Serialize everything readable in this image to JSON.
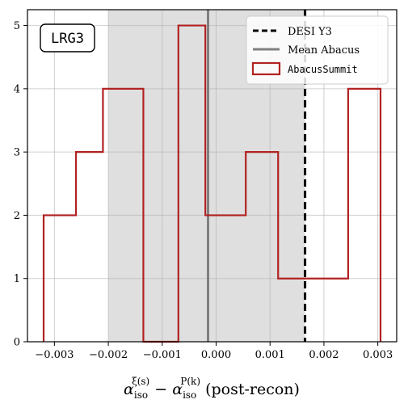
{
  "chart_data": {
    "type": "histogram",
    "badge": "LRG3",
    "xlabel": {
      "main": "α",
      "sub1": "iso",
      "sup1": "ξ(s)",
      "minus": "−",
      "sub2": "iso",
      "sup2": "P(k)",
      "suffix": "(post-recon)"
    },
    "ylabel": "",
    "xlim": [
      -0.0035,
      0.00335
    ],
    "ylim": [
      0,
      5.25
    ],
    "xticks": [
      -0.003,
      -0.002,
      -0.001,
      0.0,
      0.001,
      0.002,
      0.003
    ],
    "xtick_labels": [
      "−0.003",
      "−0.002",
      "−0.001",
      "0.000",
      "0.001",
      "0.002",
      "0.003"
    ],
    "yticks": [
      0,
      1,
      2,
      3,
      4,
      5
    ],
    "ytick_labels": [
      "0",
      "1",
      "2",
      "3",
      "4",
      "5"
    ],
    "grid": true,
    "shaded_band": [
      -0.002,
      0.00165
    ],
    "bin_edges": [
      -0.0032,
      -0.0026,
      -0.0021,
      -0.00135,
      -0.0007,
      -0.0002,
      0.00055,
      0.00115,
      0.00185,
      0.00245,
      0.00305
    ],
    "counts": [
      2,
      3,
      4,
      0,
      5,
      2,
      3,
      1,
      1,
      4
    ],
    "series": [
      {
        "name": "DESI Y3",
        "kind": "vline",
        "x": 0.00165,
        "color": "#000000",
        "style": "dashed"
      },
      {
        "name": "Mean Abacus",
        "kind": "vline",
        "x": -0.00015,
        "color": "#808080",
        "style": "solid"
      },
      {
        "name": "AbacusSummit",
        "kind": "step-histogram",
        "color": "#b22222"
      }
    ],
    "legend_position": "top-right"
  }
}
